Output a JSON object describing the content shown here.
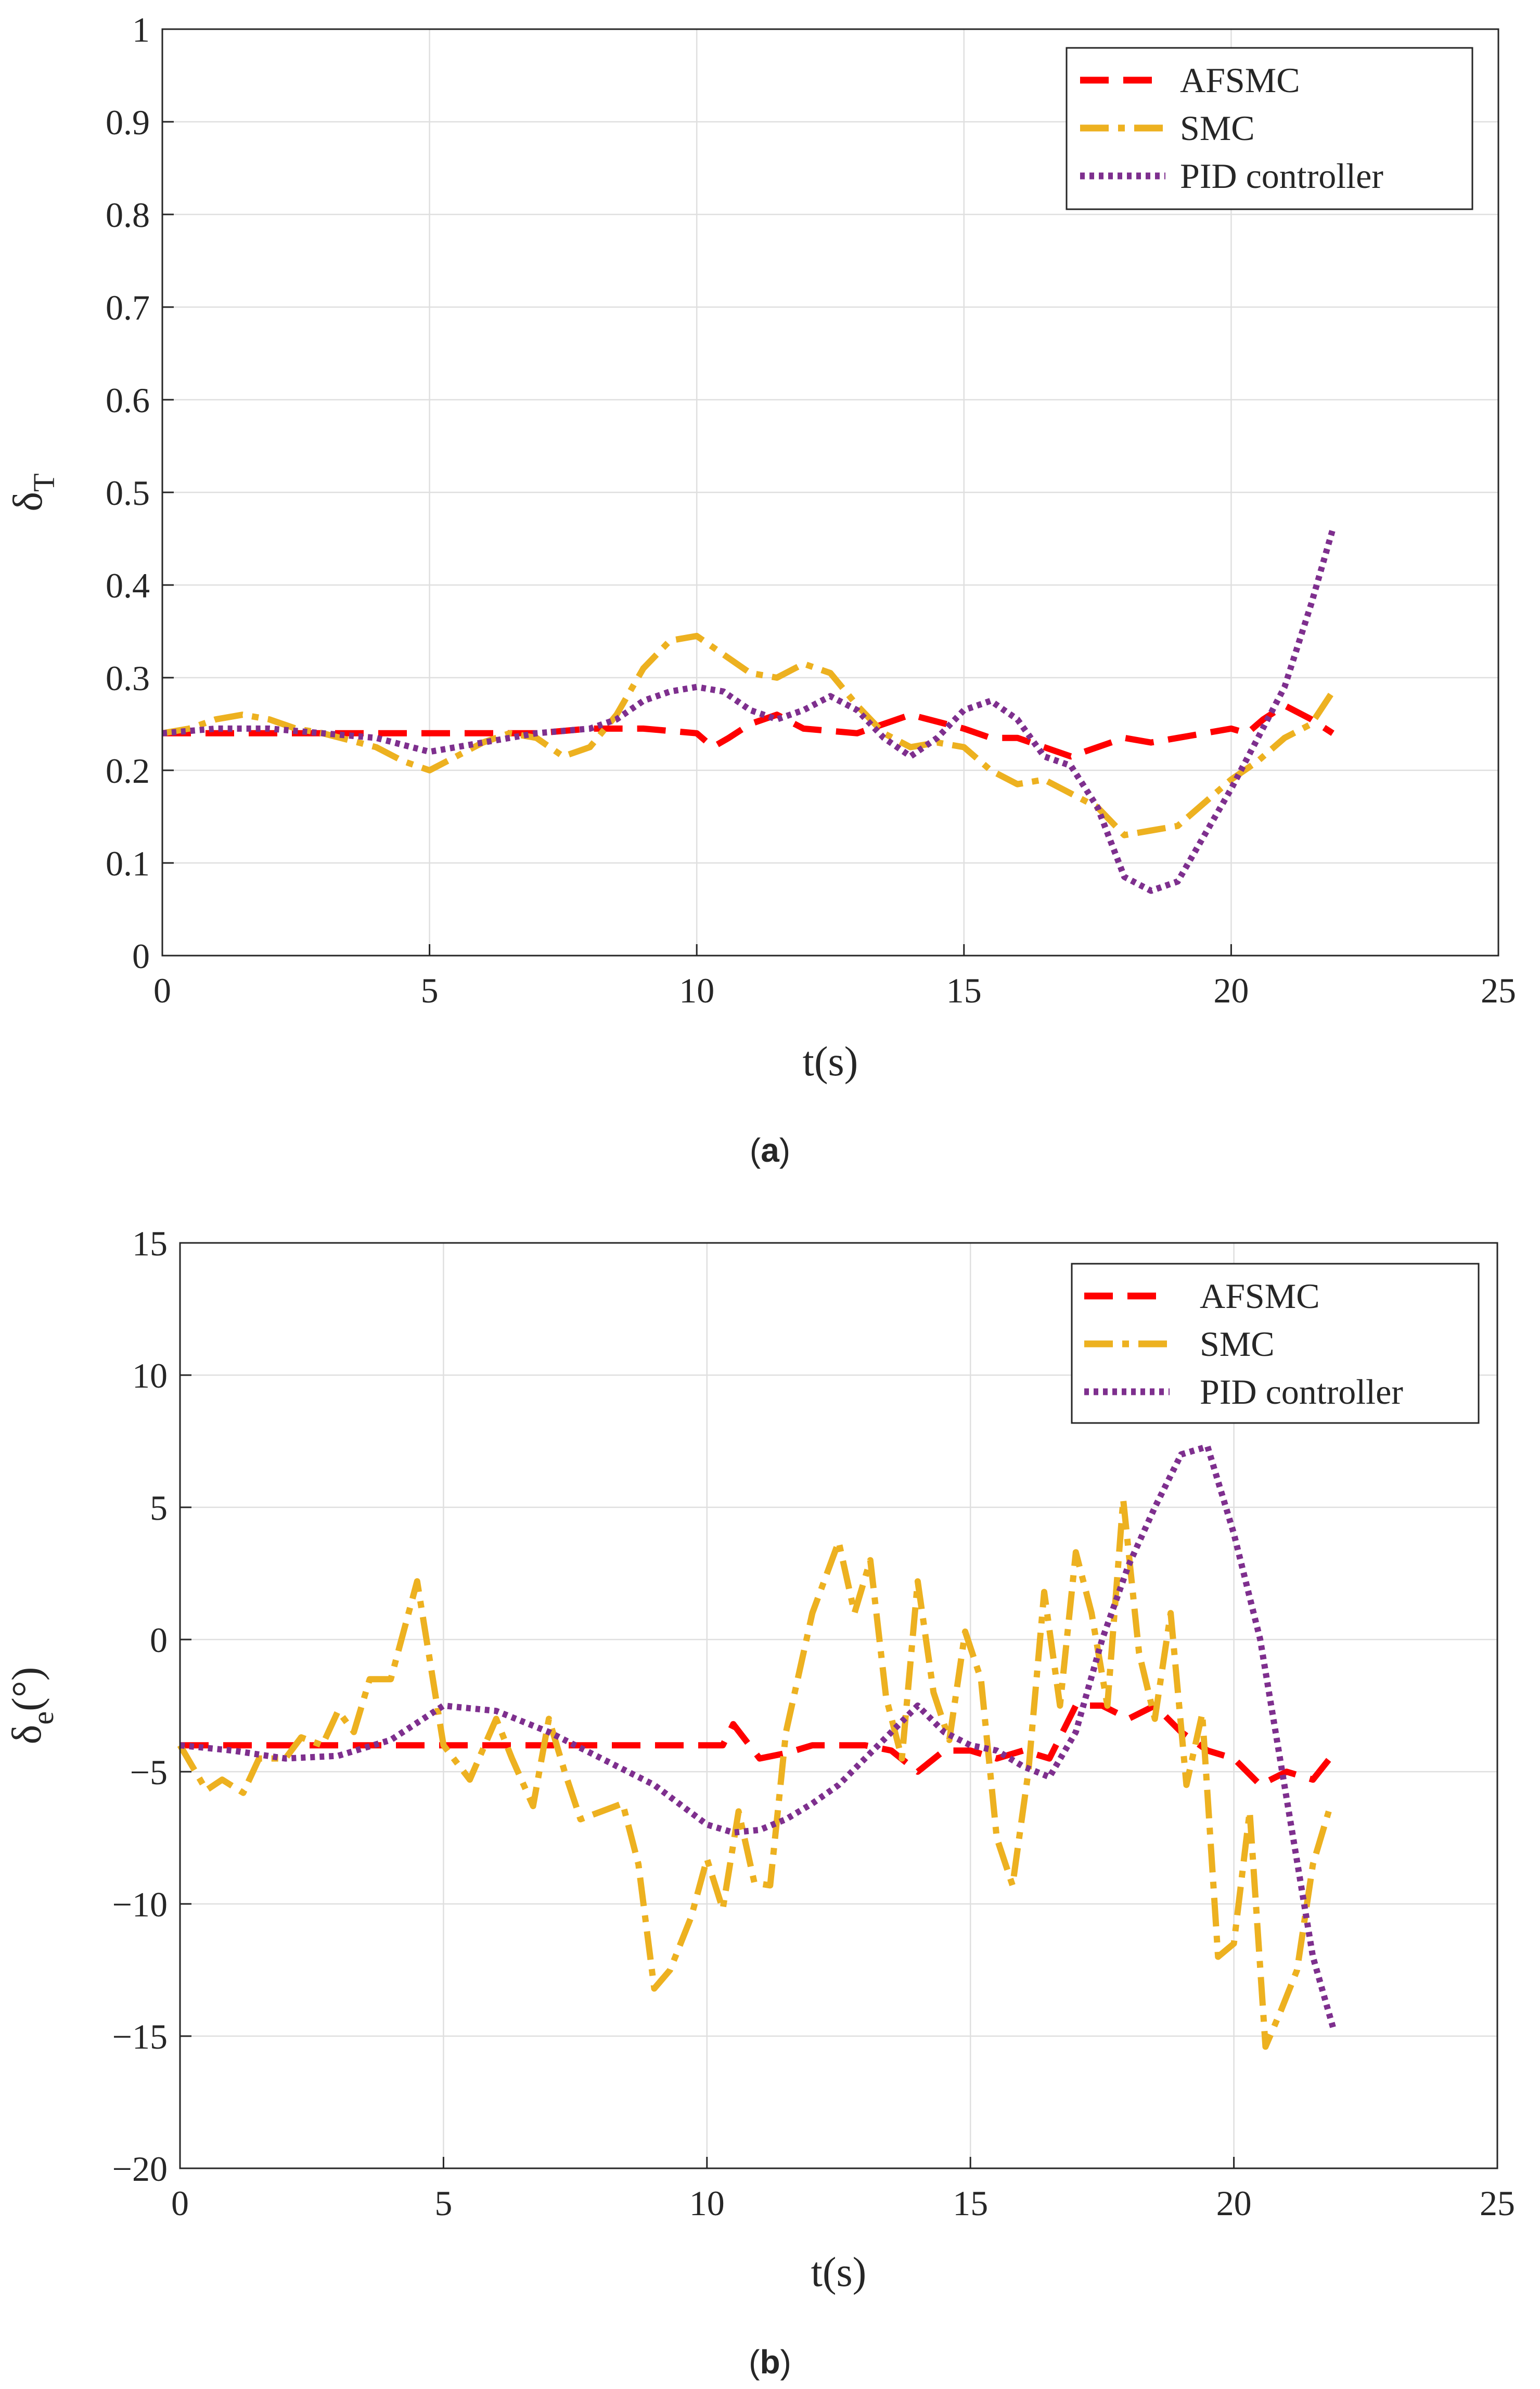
{
  "chart_data": [
    {
      "type": "line",
      "panel": "a",
      "caption": {
        "open": "(",
        "letter": "a",
        "close": ")"
      },
      "xlabel": "t(s)",
      "ylabel": {
        "base": "δ",
        "sub": "T"
      },
      "xlim": [
        0,
        25
      ],
      "ylim": [
        0,
        1
      ],
      "xticks": [
        0,
        5,
        10,
        15,
        20,
        25
      ],
      "yticks": [
        0,
        0.1,
        0.2,
        0.3,
        0.4,
        0.5,
        0.6,
        0.7,
        0.8,
        0.9,
        1
      ],
      "ytick_labels": [
        "0",
        "0.1",
        "0.2",
        "0.3",
        "0.4",
        "0.5",
        "0.6",
        "0.7",
        "0.8",
        "0.9",
        "1"
      ],
      "grid": true,
      "legend_position": "top-right",
      "series": [
        {
          "name": "AFSMC",
          "color": "#ff0000",
          "style": "dashed",
          "x": [
            0,
            1,
            2,
            3,
            4,
            5,
            6,
            7,
            8,
            9,
            10,
            10.3,
            10.6,
            11,
            11.5,
            12,
            13,
            14,
            15,
            15.5,
            16,
            16.5,
            17,
            17.5,
            18,
            18.5,
            19,
            19.5,
            20,
            20.3,
            20.6,
            21,
            21.5,
            21.9
          ],
          "y": [
            0.24,
            0.24,
            0.24,
            0.24,
            0.24,
            0.24,
            0.24,
            0.24,
            0.245,
            0.245,
            0.24,
            0.225,
            0.235,
            0.25,
            0.26,
            0.245,
            0.24,
            0.26,
            0.245,
            0.235,
            0.235,
            0.225,
            0.215,
            0.225,
            0.235,
            0.23,
            0.235,
            0.24,
            0.245,
            0.24,
            0.255,
            0.27,
            0.255,
            0.24
          ]
        },
        {
          "name": "SMC",
          "color": "#edb120",
          "style": "dashdot",
          "x": [
            0,
            0.5,
            1,
            1.5,
            2,
            2.5,
            3,
            4,
            4.5,
            5,
            5.5,
            6,
            6.5,
            7,
            7.5,
            8,
            8.5,
            9,
            9.5,
            10,
            10.5,
            11,
            11.5,
            12,
            12.5,
            13,
            13.5,
            14,
            14.5,
            15,
            15.5,
            16,
            16.5,
            17,
            17.5,
            18,
            18.5,
            19,
            19.5,
            20,
            20.5,
            21,
            21.5,
            21.9
          ],
          "y": [
            0.24,
            0.245,
            0.255,
            0.26,
            0.255,
            0.245,
            0.24,
            0.225,
            0.21,
            0.2,
            0.215,
            0.23,
            0.24,
            0.235,
            0.215,
            0.225,
            0.26,
            0.31,
            0.34,
            0.345,
            0.325,
            0.305,
            0.3,
            0.315,
            0.305,
            0.27,
            0.24,
            0.225,
            0.23,
            0.225,
            0.2,
            0.185,
            0.19,
            0.175,
            0.16,
            0.13,
            0.135,
            0.14,
            0.165,
            0.19,
            0.21,
            0.235,
            0.25,
            0.285
          ]
        },
        {
          "name": "PID controller",
          "color": "#7e2f8e",
          "style": "dotted",
          "x": [
            0,
            1,
            2,
            3,
            4,
            5,
            6,
            7,
            8,
            8.5,
            9,
            9.5,
            10,
            10.5,
            11,
            11.5,
            12,
            12.5,
            13,
            13.5,
            14,
            14.5,
            15,
            15.5,
            16,
            16.5,
            17,
            17.5,
            18,
            18.5,
            19,
            19.5,
            20,
            20.5,
            21,
            21.5,
            21.9
          ],
          "y": [
            0.24,
            0.245,
            0.245,
            0.24,
            0.235,
            0.22,
            0.23,
            0.24,
            0.245,
            0.255,
            0.275,
            0.285,
            0.29,
            0.285,
            0.265,
            0.255,
            0.265,
            0.28,
            0.265,
            0.235,
            0.215,
            0.235,
            0.265,
            0.275,
            0.255,
            0.215,
            0.205,
            0.16,
            0.085,
            0.07,
            0.08,
            0.13,
            0.18,
            0.235,
            0.29,
            0.38,
            0.46
          ]
        }
      ]
    },
    {
      "type": "line",
      "panel": "b",
      "caption": {
        "open": "(",
        "letter": "b",
        "close": ")"
      },
      "xlabel": "t(s)",
      "ylabel": {
        "base": "δ",
        "sub": "e",
        "suffix": "(°)"
      },
      "xlim": [
        0,
        25
      ],
      "ylim": [
        -20,
        15
      ],
      "xticks": [
        0,
        5,
        10,
        15,
        20,
        25
      ],
      "yticks": [
        -20,
        -15,
        -10,
        -5,
        0,
        5,
        10,
        15
      ],
      "ytick_labels": [
        "−20",
        "−15",
        "−10",
        "−5",
        "0",
        "5",
        "10",
        "15"
      ],
      "grid": true,
      "legend_position": "top-right",
      "series": [
        {
          "name": "AFSMC",
          "color": "#ff0000",
          "style": "dashed",
          "x": [
            0,
            1,
            2,
            3,
            4,
            5,
            6,
            7,
            8,
            9,
            10,
            10.3,
            10.5,
            11,
            11.5,
            12,
            12.5,
            13,
            13.5,
            14,
            14.5,
            15,
            15.5,
            16,
            16.5,
            17,
            17.5,
            18,
            18.5,
            19,
            19.5,
            20,
            20.5,
            21,
            21.5,
            21.9
          ],
          "y": [
            -4,
            -4,
            -4,
            -4,
            -4,
            -4,
            -4,
            -4,
            -4,
            -4,
            -4,
            -4,
            -3.2,
            -4.5,
            -4.3,
            -4,
            -4,
            -4,
            -4.2,
            -5,
            -4.2,
            -4.2,
            -4.5,
            -4.2,
            -4.5,
            -2.5,
            -2.5,
            -3,
            -2.5,
            -3.5,
            -4.2,
            -4.5,
            -5.5,
            -5,
            -5.3,
            -4.3
          ]
        },
        {
          "name": "SMC",
          "color": "#edb120",
          "style": "dashdot",
          "x": [
            0,
            0.5,
            0.8,
            1.2,
            1.5,
            2,
            2.3,
            2.7,
            3,
            3.3,
            3.6,
            4,
            4.5,
            5,
            5.5,
            6,
            6.3,
            6.7,
            7,
            7.3,
            7.6,
            8,
            8.4,
            8.7,
            9,
            9.3,
            9.7,
            10,
            10.3,
            10.6,
            10.9,
            11.2,
            11.5,
            12,
            12.5,
            12.8,
            13.1,
            13.4,
            13.7,
            14,
            14.3,
            14.6,
            14.9,
            15.2,
            15.5,
            15.8,
            16.1,
            16.4,
            16.7,
            17,
            17.3,
            17.6,
            17.9,
            18.2,
            18.5,
            18.8,
            19.1,
            19.4,
            19.7,
            20,
            20.3,
            20.6,
            20.9,
            21.2,
            21.5,
            21.8
          ],
          "y": [
            -4,
            -5.7,
            -5.3,
            -5.8,
            -4.5,
            -4.5,
            -3.7,
            -4,
            -2.7,
            -3.5,
            -1.5,
            -1.5,
            2.2,
            -4,
            -5.3,
            -3,
            -4.5,
            -6.3,
            -3,
            -5,
            -6.8,
            -6.5,
            -6.2,
            -8.5,
            -13.2,
            -12.5,
            -10.5,
            -8.3,
            -10.2,
            -6.5,
            -9.2,
            -9.3,
            -3.5,
            1,
            3.7,
            1,
            3,
            -2.2,
            -4.5,
            2.2,
            -2,
            -3.8,
            0.3,
            -1.5,
            -7.5,
            -9.3,
            -5,
            1.8,
            -2.5,
            3.3,
            1,
            -2.5,
            5.3,
            -0.5,
            -3,
            1,
            -5.5,
            -2.8,
            -12,
            -11.5,
            -6.5,
            -15.4,
            -14,
            -12.5,
            -8.5,
            -6.5
          ]
        },
        {
          "name": "PID controller",
          "color": "#7e2f8e",
          "style": "dotted",
          "x": [
            0,
            1,
            2,
            3,
            4,
            5,
            6,
            7,
            8,
            9,
            10,
            10.5,
            11,
            11.5,
            12,
            12.5,
            13,
            13.5,
            14,
            14.5,
            15,
            15.5,
            16,
            16.5,
            17,
            17.5,
            18,
            18.5,
            19,
            19.5,
            20,
            20.5,
            21,
            21.5,
            21.9
          ],
          "y": [
            -4,
            -4.2,
            -4.5,
            -4.4,
            -3.8,
            -2.5,
            -2.7,
            -3.5,
            -4.5,
            -5.5,
            -7,
            -7.3,
            -7.2,
            -6.8,
            -6.2,
            -5.5,
            -4.5,
            -3.5,
            -2.5,
            -3.5,
            -4,
            -4.2,
            -4.8,
            -5.2,
            -3.5,
            0,
            2.8,
            5,
            7,
            7.3,
            4,
            0,
            -6,
            -12,
            -14.8
          ]
        }
      ]
    }
  ]
}
